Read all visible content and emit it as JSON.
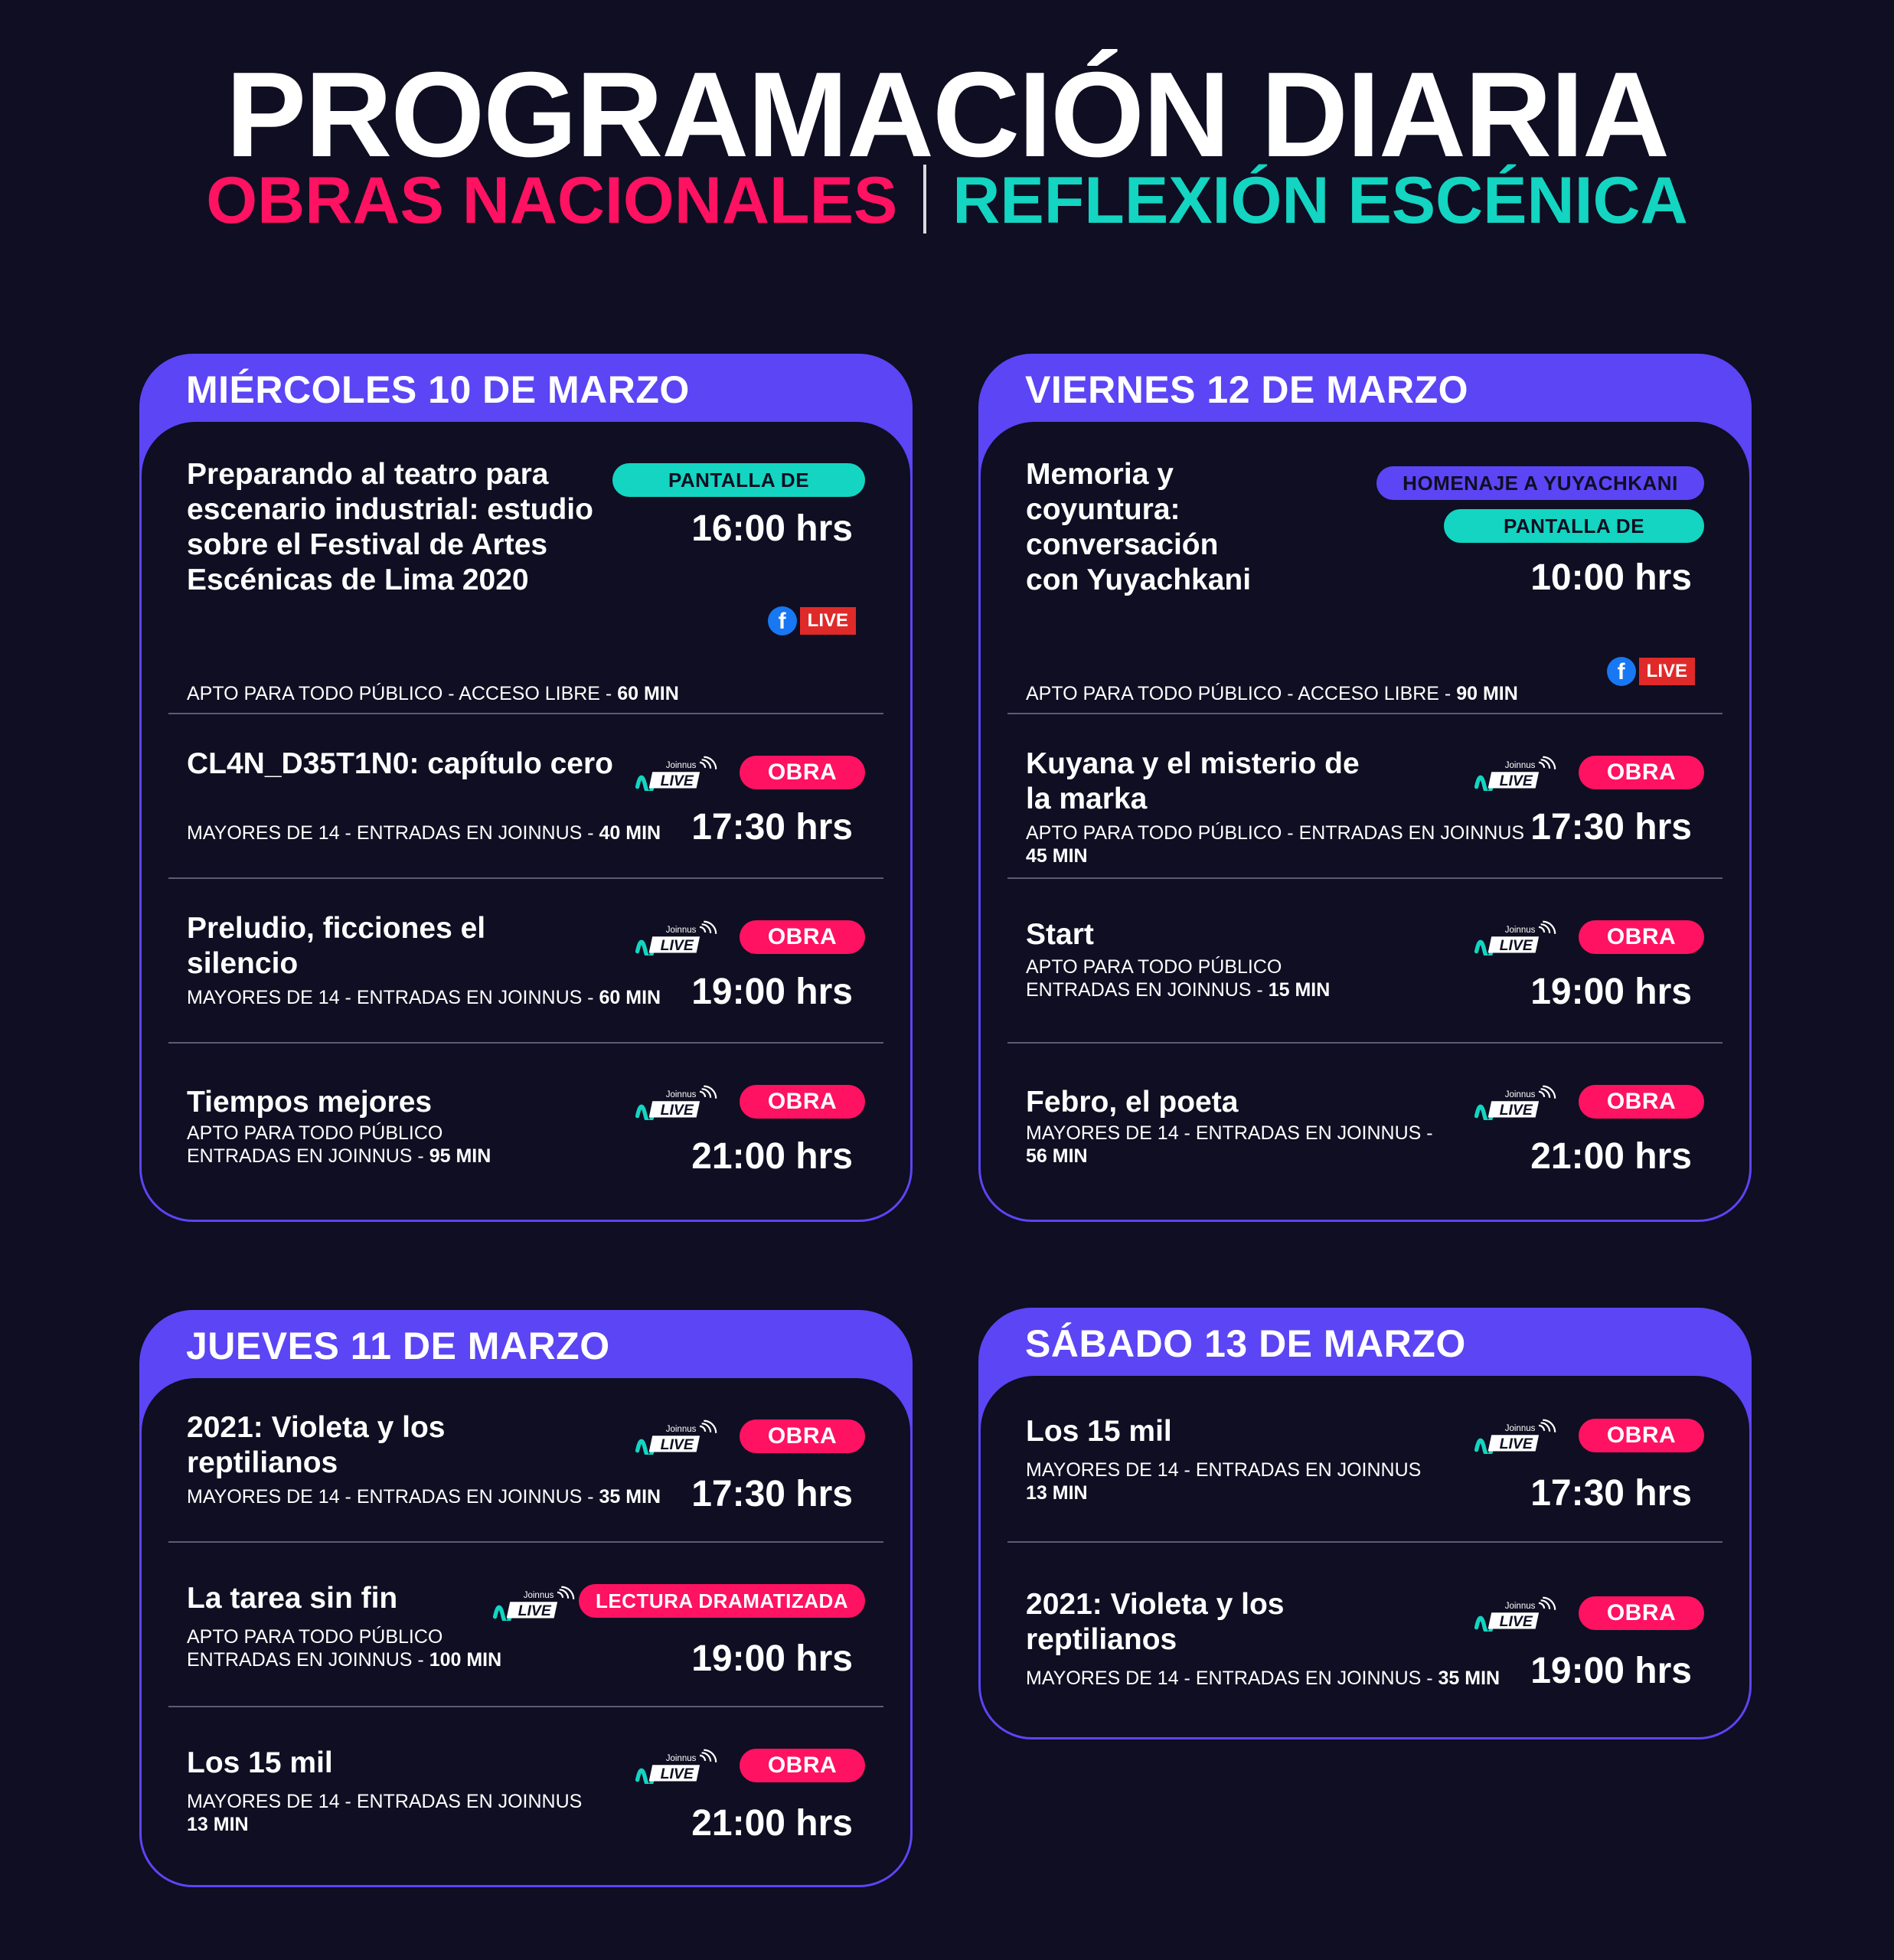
{
  "header": {
    "title": "PROGRAMACIÓN DIARIA",
    "subtitle_left": "OBRAS NACIONALES",
    "subtitle_right": "REFLEXIÓN ESCÉNICA"
  },
  "colors": {
    "background": "#0f0e22",
    "purple": "#5b45f5",
    "pink": "#ff1261",
    "teal": "#13d5c1"
  },
  "days": [
    {
      "heading": "MIÉRCOLES 10 DE MARZO",
      "events": [
        {
          "title": "Preparando al teatro para escenario industrial: estudio sobre el Festival de Artes Escénicas de Lima 2020",
          "meta": "APTO PARA TODO PÚBLICO - ACCESO LIBRE - ",
          "duration": "60 MIN",
          "time": "16:00 hrs",
          "badge": "PANTALLA DE DIÁLOGO",
          "live": "LIVE"
        },
        {
          "title": "CL4N_D35T1N0: capítulo cero",
          "meta": "MAYORES DE 14 - ENTRADAS EN JOINNUS - ",
          "duration": "40 MIN",
          "time": "17:30 hrs",
          "badge": "OBRA",
          "platform": "Joinnus LIVE"
        },
        {
          "title": "Preludio, ficciones el silencio",
          "meta": "MAYORES DE 14 - ENTRADAS EN JOINNUS - ",
          "duration": "60 MIN",
          "time": "19:00 hrs",
          "badge": "OBRA",
          "platform": "Joinnus LIVE"
        },
        {
          "title": "Tiempos mejores",
          "meta": "APTO PARA TODO PÚBLICO ENTRADAS EN JOINNUS - ",
          "duration": "95 MIN",
          "time": "21:00 hrs",
          "badge": "OBRA",
          "platform": "Joinnus LIVE"
        }
      ]
    },
    {
      "heading": "VIERNES 12 DE MARZO",
      "events": [
        {
          "title": "Memoria y coyuntura: conversación con Yuyachkani",
          "meta": "APTO PARA TODO PÚBLICO - ACCESO LIBRE - ",
          "duration": "90 MIN",
          "time": "10:00 hrs",
          "badge": "HOMENAJE A YUYACHKANI",
          "badge2": "PANTALLA DE DIÁLOGO",
          "live": "LIVE"
        },
        {
          "title": "Kuyana y el misterio de la marka",
          "meta": "APTO PARA TODO PÚBLICO - ENTRADAS EN JOINNUS ",
          "duration": "45 MIN",
          "time": "17:30 hrs",
          "badge": "OBRA",
          "platform": "Joinnus LIVE"
        },
        {
          "title": "Start",
          "meta": "APTO PARA TODO PÚBLICO ENTRADAS EN JOINNUS - ",
          "duration": "15 MIN",
          "time": "19:00 hrs",
          "badge": "OBRA",
          "platform": "Joinnus LIVE"
        },
        {
          "title": "Febro, el poeta",
          "meta": "MAYORES DE 14 - ENTRADAS EN JOINNUS - ",
          "duration": "56 MIN",
          "time": "21:00 hrs",
          "badge": "OBRA",
          "platform": "Joinnus LIVE"
        }
      ]
    },
    {
      "heading": "JUEVES 11 DE MARZO",
      "events": [
        {
          "title": "2021: Violeta y los reptilianos",
          "meta": "MAYORES DE 14 - ENTRADAS EN JOINNUS - ",
          "duration": "35 MIN",
          "time": "17:30 hrs",
          "badge": "OBRA",
          "platform": "Joinnus LIVE"
        },
        {
          "title": "La tarea sin fin",
          "meta": "APTO PARA TODO PÚBLICO ENTRADAS EN JOINNUS - ",
          "duration": "100 MIN",
          "time": "19:00 hrs",
          "badge": "LECTURA DRAMATIZADA",
          "platform": "Joinnus LIVE"
        },
        {
          "title": "Los 15 mil",
          "meta": "MAYORES DE 14 - ENTRADAS EN JOINNUS ",
          "duration": "13 MIN",
          "time": "21:00 hrs",
          "badge": "OBRA",
          "platform": "Joinnus LIVE"
        }
      ]
    },
    {
      "heading": "SÁBADO 13 DE MARZO",
      "events": [
        {
          "title": "Los 15 mil",
          "meta": "MAYORES DE 14 - ENTRADAS EN JOINNUS ",
          "duration": "13 MIN",
          "time": "17:30 hrs",
          "badge": "OBRA",
          "platform": "Joinnus LIVE"
        },
        {
          "title": "2021: Violeta y los reptilianos",
          "meta": "MAYORES DE 14 - ENTRADAS EN JOINNUS - ",
          "duration": "35 MIN",
          "time": "19:00 hrs",
          "badge": "OBRA",
          "platform": "Joinnus LIVE"
        }
      ]
    }
  ]
}
